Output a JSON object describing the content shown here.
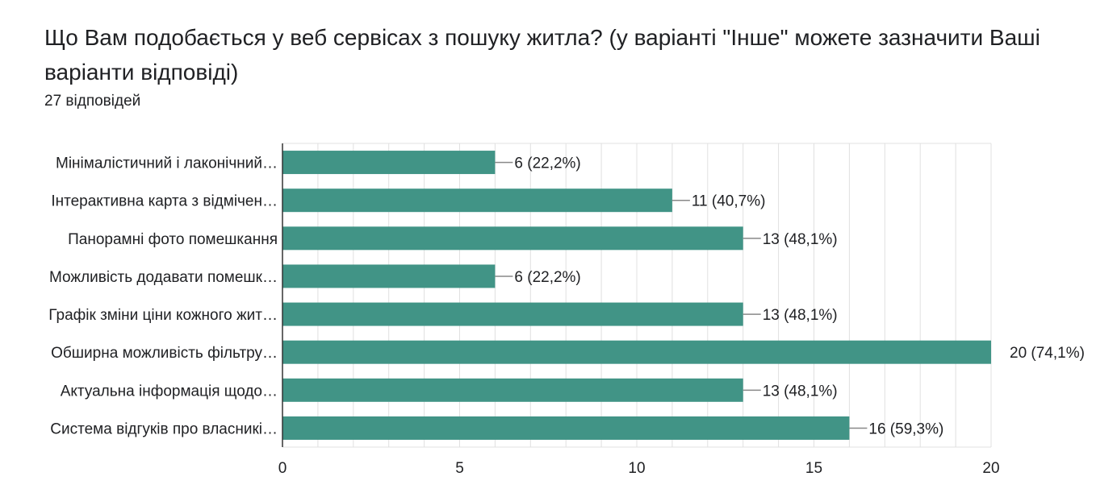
{
  "title": "Що Вам подобається у веб сервісах з пошуку житла? (у варіанті \"Інше\" можете зазначити Ваші варіанти відповіді)",
  "response_count": "27 відповідей",
  "colors": {
    "bar": "#419486",
    "grid": "#e0e0e0",
    "axis": "#333333",
    "connector": "#888888"
  },
  "chart_data": {
    "type": "bar",
    "orientation": "horizontal",
    "categories": [
      "Мінімалістичний і лаконічний…",
      "Інтерактивна карта з відмічен…",
      "Панорамні фото помешкання",
      "Можливість додавати помешк…",
      "Графік зміни ціни кожного жит…",
      "Обширна можливість фільтру…",
      "Актуальна інформація щодо…",
      "Система відгуків про власникі…"
    ],
    "values": [
      6,
      11,
      13,
      6,
      13,
      20,
      13,
      16
    ],
    "value_labels": [
      "6 (22,2%)",
      "11 (40,7%)",
      "13 (48,1%)",
      "6 (22,2%)",
      "13 (48,1%)",
      "20 (74,1%)",
      "13 (48,1%)",
      "16 (59,3%)"
    ],
    "xlim": [
      0,
      20
    ],
    "x_ticks": [
      0,
      5,
      10,
      15,
      20
    ],
    "grid": true
  }
}
